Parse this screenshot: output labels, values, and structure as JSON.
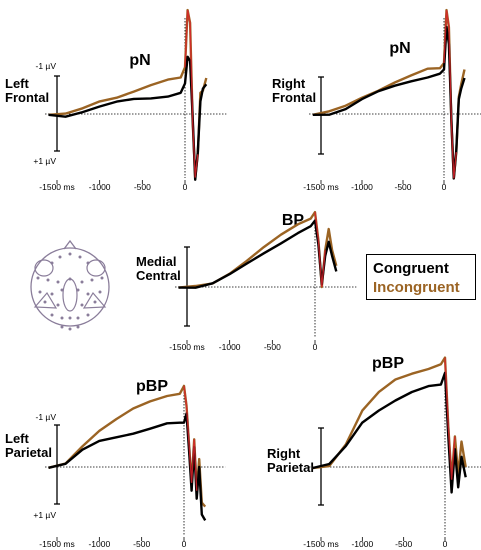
{
  "colors": {
    "congruent": "#000000",
    "incongruent": "#9b6424",
    "onset_peak": "#d9232a",
    "head_outline": "#8a7d9a"
  },
  "legend": {
    "congruent": "Congruent",
    "incongruent": "Incongruent"
  },
  "chart_data": [
    {
      "type": "line",
      "panel": "Left Frontal",
      "label": [
        "Left",
        "Frontal"
      ],
      "component": "pN",
      "scale_top": "-1 µV",
      "scale_bottom": "+1 µV",
      "xlim": [
        -1500,
        250
      ],
      "ylim": [
        -2.5,
        1.6
      ],
      "y_inverted": true,
      "ticks": [
        {
          "v": -1500,
          "t": "-1500 ms"
        },
        {
          "v": -1000,
          "t": "-1000"
        },
        {
          "v": -500,
          "t": "-500"
        },
        {
          "v": 0,
          "t": "0"
        }
      ],
      "x": [
        -1600,
        -1400,
        -1200,
        -1000,
        -800,
        -600,
        -400,
        -200,
        -50,
        0,
        30,
        60,
        90,
        120,
        150,
        180,
        210,
        250
      ],
      "series": [
        {
          "name": "Congruent",
          "values": [
            0.02,
            0.03,
            -0.08,
            -0.18,
            -0.26,
            -0.32,
            -0.36,
            -0.44,
            -0.5,
            -0.72,
            -1.35,
            -1.25,
            0.1,
            1.55,
            0.9,
            -0.3,
            -0.6,
            -0.7
          ]
        },
        {
          "name": "Incongruent",
          "values": [
            0.02,
            -0.01,
            -0.1,
            -0.26,
            -0.38,
            -0.56,
            -0.72,
            -0.82,
            -0.86,
            -1.1,
            -2.45,
            -2.15,
            0.2,
            1.5,
            0.95,
            -0.5,
            -0.55,
            -0.85
          ]
        }
      ]
    },
    {
      "type": "line",
      "panel": "Right Frontal",
      "label": [
        "Right",
        "Frontal"
      ],
      "component": "pN",
      "xlim": [
        -1500,
        250
      ],
      "ylim": [
        -2.5,
        1.6
      ],
      "y_inverted": true,
      "ticks": [
        {
          "v": -1500,
          "t": "-1500 ms"
        },
        {
          "v": -1000,
          "t": "-1000"
        },
        {
          "v": -500,
          "t": "-500"
        },
        {
          "v": 0,
          "t": "0"
        }
      ],
      "x": [
        -1600,
        -1400,
        -1200,
        -1000,
        -800,
        -600,
        -400,
        -200,
        -50,
        0,
        30,
        60,
        90,
        120,
        150,
        180,
        210,
        250
      ],
      "series": [
        {
          "name": "Congruent",
          "values": [
            0.02,
            -0.02,
            -0.12,
            -0.32,
            -0.5,
            -0.66,
            -0.8,
            -0.9,
            -0.95,
            -1.05,
            -2.05,
            -1.65,
            0.15,
            1.52,
            0.85,
            -0.35,
            -0.6,
            -0.85
          ]
        },
        {
          "name": "Incongruent",
          "values": [
            0.02,
            -0.03,
            -0.16,
            -0.38,
            -0.58,
            -0.78,
            -0.92,
            -1.04,
            -1.08,
            -1.2,
            -2.45,
            -2.05,
            0.2,
            1.52,
            0.9,
            -0.4,
            -0.7,
            -1.05
          ]
        }
      ]
    },
    {
      "type": "line",
      "panel": "Medial Central",
      "label": [
        "Medial",
        "Central"
      ],
      "component": "BP",
      "xlim": [
        -1500,
        250
      ],
      "ylim": [
        -2.9,
        1.4
      ],
      "y_inverted": true,
      "ticks": [
        {
          "v": -1500,
          "t": "-1500 ms"
        },
        {
          "v": -1000,
          "t": "-1000"
        },
        {
          "v": -500,
          "t": "-500"
        },
        {
          "v": 0,
          "t": "0"
        }
      ],
      "x": [
        -1600,
        -1400,
        -1200,
        -1000,
        -800,
        -600,
        -400,
        -200,
        -50,
        0,
        40,
        80,
        120,
        160,
        200,
        250
      ],
      "series": [
        {
          "name": "Congruent",
          "values": [
            0.02,
            0.02,
            -0.1,
            -0.42,
            -0.82,
            -1.22,
            -1.58,
            -1.92,
            -2.15,
            -2.35,
            -1.5,
            -0.1,
            -1.1,
            -1.6,
            -1.1,
            -0.55
          ]
        },
        {
          "name": "Incongruent",
          "values": [
            0.02,
            0.0,
            -0.12,
            -0.5,
            -0.96,
            -1.42,
            -1.82,
            -2.18,
            -2.42,
            -2.65,
            -1.65,
            0.0,
            -1.3,
            -2.05,
            -1.3,
            -0.75
          ]
        }
      ]
    },
    {
      "type": "line",
      "panel": "Left Parietal",
      "label": [
        "Left",
        "Parietal"
      ],
      "component": "pBP",
      "scale_top": "-1 µV",
      "scale_bottom": "+1 µV",
      "xlim": [
        -1500,
        250
      ],
      "ylim": [
        -2.3,
        1.4
      ],
      "y_inverted": true,
      "ticks": [
        {
          "v": -1500,
          "t": "-1500 ms"
        },
        {
          "v": -1000,
          "t": "-1000"
        },
        {
          "v": -500,
          "t": "-500"
        },
        {
          "v": 0,
          "t": "0"
        }
      ],
      "x": [
        -1600,
        -1400,
        -1200,
        -1000,
        -800,
        -600,
        -400,
        -200,
        -50,
        0,
        30,
        60,
        90,
        120,
        150,
        180,
        210,
        250
      ],
      "series": [
        {
          "name": "Congruent",
          "values": [
            0.02,
            -0.05,
            -0.4,
            -0.65,
            -0.78,
            -0.88,
            -0.98,
            -1.08,
            -1.12,
            -1.12,
            -1.35,
            -0.4,
            0.6,
            -0.5,
            0.8,
            0.0,
            1.2,
            1.35
          ]
        },
        {
          "name": "Incongruent",
          "values": [
            0.02,
            -0.08,
            -0.55,
            -0.95,
            -1.22,
            -1.45,
            -1.62,
            -1.78,
            -1.85,
            -2.05,
            -1.55,
            -0.55,
            0.4,
            -0.7,
            0.6,
            -0.2,
            0.9,
            1.0
          ]
        }
      ]
    },
    {
      "type": "line",
      "panel": "Right Parietal",
      "label": [
        "Right",
        "Parietal"
      ],
      "component": "pBP",
      "xlim": [
        -1500,
        250
      ],
      "ylim": [
        -2.3,
        1.4
      ],
      "y_inverted": true,
      "ticks": [
        {
          "v": -1500,
          "t": "-1500 ms"
        },
        {
          "v": -1000,
          "t": "-1000"
        },
        {
          "v": -500,
          "t": "-500"
        },
        {
          "v": 0,
          "t": "0"
        }
      ],
      "x": [
        -1600,
        -1400,
        -1200,
        -1000,
        -800,
        -600,
        -400,
        -200,
        -50,
        0,
        40,
        80,
        120,
        160,
        200,
        250
      ],
      "series": [
        {
          "name": "Congruent",
          "values": [
            0.02,
            -0.02,
            -0.4,
            -0.9,
            -1.15,
            -1.32,
            -1.45,
            -1.55,
            -1.62,
            -1.85,
            -0.6,
            0.5,
            -0.35,
            0.4,
            -0.2,
            0.2
          ]
        },
        {
          "name": "Incongruent",
          "values": [
            0.02,
            -0.05,
            -0.48,
            -1.12,
            -1.45,
            -1.68,
            -1.82,
            -1.95,
            -2.02,
            -2.15,
            -0.8,
            0.25,
            -0.6,
            0.15,
            -0.5,
            0.0
          ]
        }
      ]
    }
  ]
}
